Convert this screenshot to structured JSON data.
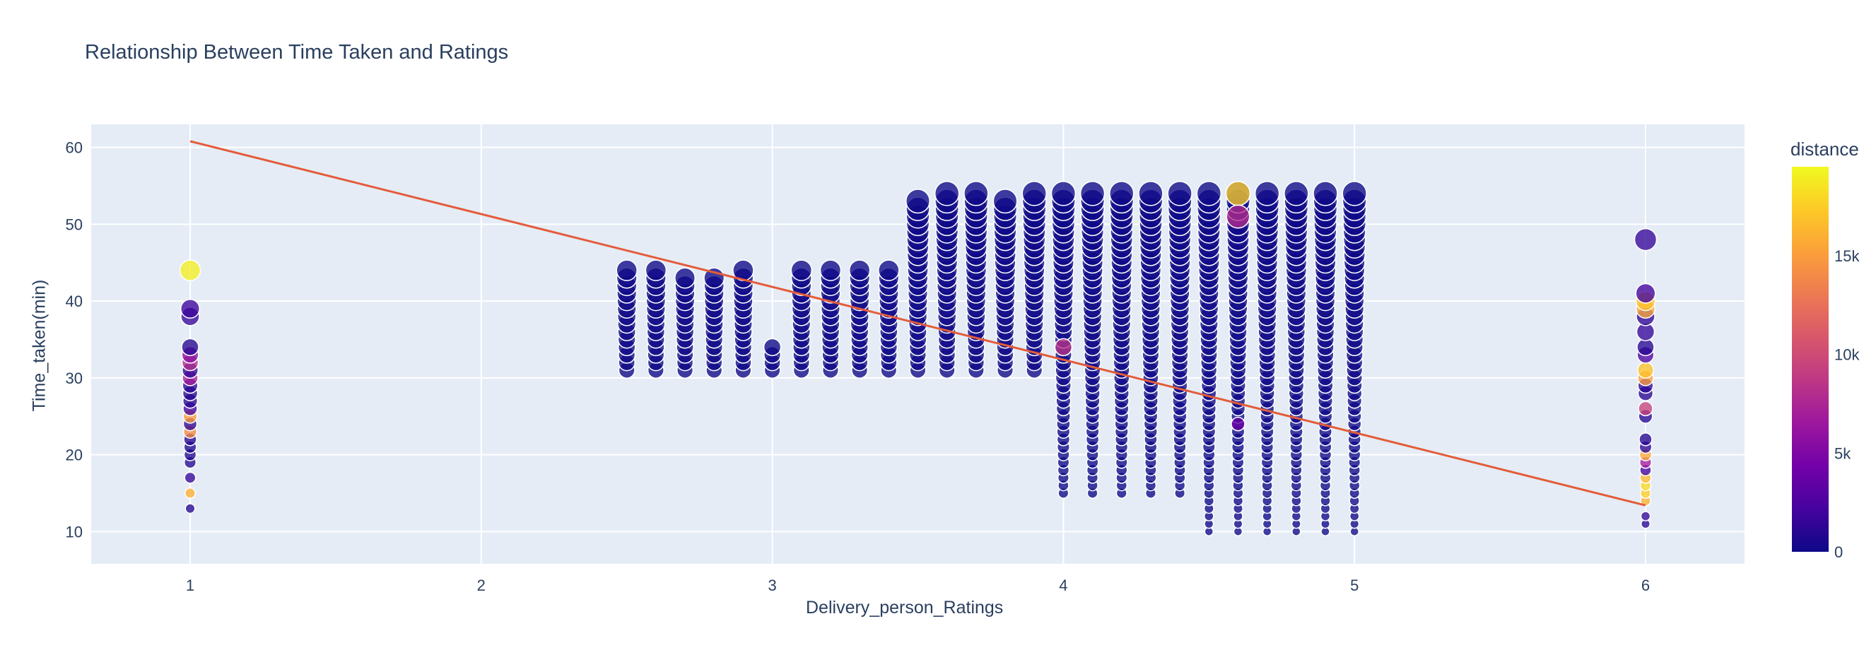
{
  "chart_data": {
    "type": "scatter",
    "title": "Relationship Between Time Taken and Ratings",
    "xlabel": "Delivery_person_Ratings",
    "ylabel": "Time_taken(min)",
    "xlim": [
      0.66,
      6.34
    ],
    "ylim": [
      5.8,
      63
    ],
    "xticks": [
      1,
      2,
      3,
      4,
      5,
      6
    ],
    "yticks": [
      10,
      20,
      30,
      40,
      50,
      60
    ],
    "grid": true,
    "legend": "none",
    "colorbar": {
      "title": "distance",
      "range": [
        0,
        19500
      ],
      "ticks": [
        {
          "value": 0,
          "label": "0"
        },
        {
          "value": 5000,
          "label": "5k"
        },
        {
          "value": 10000,
          "label": "10k"
        },
        {
          "value": 15000,
          "label": "15k"
        }
      ],
      "colorscale": [
        "#0d0887",
        "#46039f",
        "#7201a8",
        "#9c179e",
        "#bd3786",
        "#d8576b",
        "#ed7953",
        "#fb9f3a",
        "#fdca26",
        "#f0f921"
      ]
    },
    "marker_size": {
      "min_y": 10,
      "max_y": 54,
      "min_radius_px": 6,
      "max_radius_px": 17
    },
    "trendline": {
      "color": "#e45c3a",
      "x": [
        1,
        6
      ],
      "y": [
        60.8,
        13.4
      ]
    },
    "series": [
      {
        "x": 1,
        "y": [
          13,
          15,
          17,
          19,
          20,
          21,
          22,
          23,
          24,
          25,
          26,
          27,
          28,
          29,
          30,
          31,
          32,
          33,
          34,
          38,
          39,
          44
        ],
        "distance": [
          800,
          16000,
          1500,
          900,
          700,
          600,
          900,
          14000,
          1200,
          15000,
          2000,
          1000,
          800,
          1000,
          7000,
          1200,
          8000,
          5500,
          900,
          1500,
          1800,
          19000
        ]
      },
      {
        "x": 2.5,
        "ymin": 31,
        "ymax": 44,
        "distance": 0
      },
      {
        "x": 2.6,
        "ymin": 31,
        "ymax": 44,
        "distance": 0
      },
      {
        "x": 2.7,
        "ymin": 31,
        "ymax": 43,
        "distance": 0
      },
      {
        "x": 2.8,
        "ymin": 31,
        "ymax": 43,
        "distance": 0
      },
      {
        "x": 2.9,
        "ymin": 31,
        "ymax": 44,
        "distance": 0
      },
      {
        "x": 3.0,
        "ymin": 31,
        "ymax": 34,
        "distance": 0
      },
      {
        "x": 3.1,
        "ymin": 31,
        "ymax": 44,
        "distance": 0
      },
      {
        "x": 3.2,
        "ymin": 31,
        "ymax": 44,
        "distance": 0
      },
      {
        "x": 3.3,
        "ymin": 31,
        "ymax": 44,
        "distance": 0
      },
      {
        "x": 3.4,
        "ymin": 31,
        "ymax": 44,
        "distance": 0
      },
      {
        "x": 3.5,
        "ymin": 31,
        "ymax": 53,
        "distance": 0
      },
      {
        "x": 3.6,
        "ymin": 31,
        "ymax": 54,
        "distance": 0
      },
      {
        "x": 3.7,
        "ymin": 31,
        "ymax": 54,
        "distance": 0
      },
      {
        "x": 3.8,
        "ymin": 31,
        "ymax": 53,
        "distance": 0
      },
      {
        "x": 3.9,
        "ymin": 31,
        "ymax": 54,
        "distance": 0
      },
      {
        "x": 4.0,
        "ymin": 15,
        "ymax": 54,
        "distance": 0
      },
      {
        "x": 4.1,
        "ymin": 15,
        "ymax": 54,
        "distance": 0
      },
      {
        "x": 4.2,
        "ymin": 15,
        "ymax": 54,
        "distance": 0
      },
      {
        "x": 4.3,
        "ymin": 15,
        "ymax": 54,
        "distance": 0
      },
      {
        "x": 4.4,
        "ymin": 15,
        "ymax": 54,
        "distance": 0
      },
      {
        "x": 4.5,
        "ymin": 10,
        "ymax": 54,
        "distance": 0
      },
      {
        "x": 4.6,
        "ymin": 10,
        "ymax": 54,
        "distance": 0
      },
      {
        "x": 4.7,
        "ymin": 10,
        "ymax": 54,
        "distance": 0
      },
      {
        "x": 4.8,
        "ymin": 10,
        "ymax": 54,
        "distance": 0
      },
      {
        "x": 4.9,
        "ymin": 10,
        "ymax": 54,
        "distance": 0
      },
      {
        "x": 5.0,
        "ymin": 10,
        "ymax": 54,
        "distance": 0
      },
      {
        "x": 6,
        "y": [
          11,
          12,
          14,
          15,
          16,
          17,
          18,
          19,
          20,
          21,
          22,
          25,
          26,
          28,
          29,
          30,
          31,
          33,
          34,
          36,
          38,
          39,
          40,
          41,
          48
        ],
        "distance": [
          1000,
          1500,
          16000,
          17500,
          18000,
          16500,
          2000,
          7000,
          15500,
          1200,
          900,
          1000,
          9500,
          1000,
          1200,
          15000,
          17000,
          2500,
          1000,
          1500,
          1200,
          15500,
          17000,
          2000,
          1500
        ]
      }
    ],
    "highlights": [
      {
        "x": 4.0,
        "y": 34,
        "distance": 8500
      },
      {
        "x": 4.6,
        "y": 54,
        "distance": 17500
      },
      {
        "x": 4.6,
        "y": 51,
        "distance": 8000
      },
      {
        "x": 4.6,
        "y": 24,
        "distance": 4000
      }
    ]
  }
}
